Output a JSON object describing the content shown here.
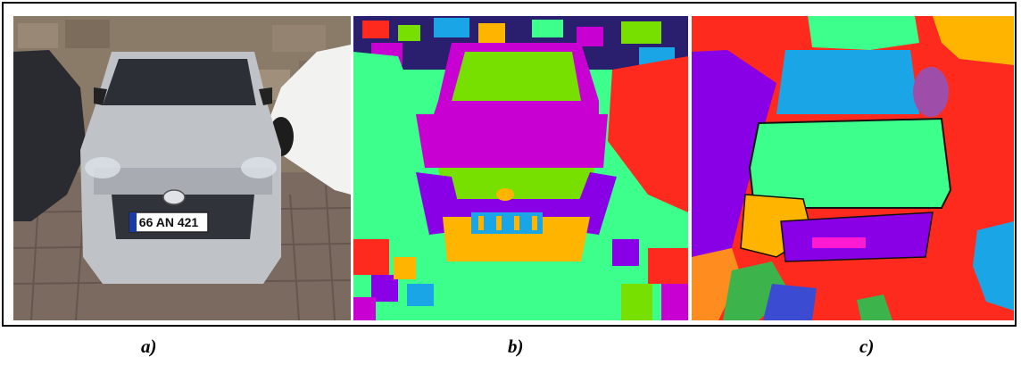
{
  "figure": {
    "panels": [
      {
        "caption": "a)",
        "content": "photo of silver hatchback car parked against stone wall"
      },
      {
        "caption": "b)",
        "content": "fine color segmentation map of the car image"
      },
      {
        "caption": "c)",
        "content": "coarse color segmentation map of the car image"
      }
    ],
    "plate_text": "66 AN 421"
  },
  "colors": {
    "green": "#3cff8c",
    "magenta": "#c800d2",
    "lime": "#78e000",
    "blue": "#1aa6e6",
    "purple": "#8a00e6",
    "red": "#ff2a1e",
    "orange": "#ffb400",
    "silver": "#bfc3c8"
  }
}
